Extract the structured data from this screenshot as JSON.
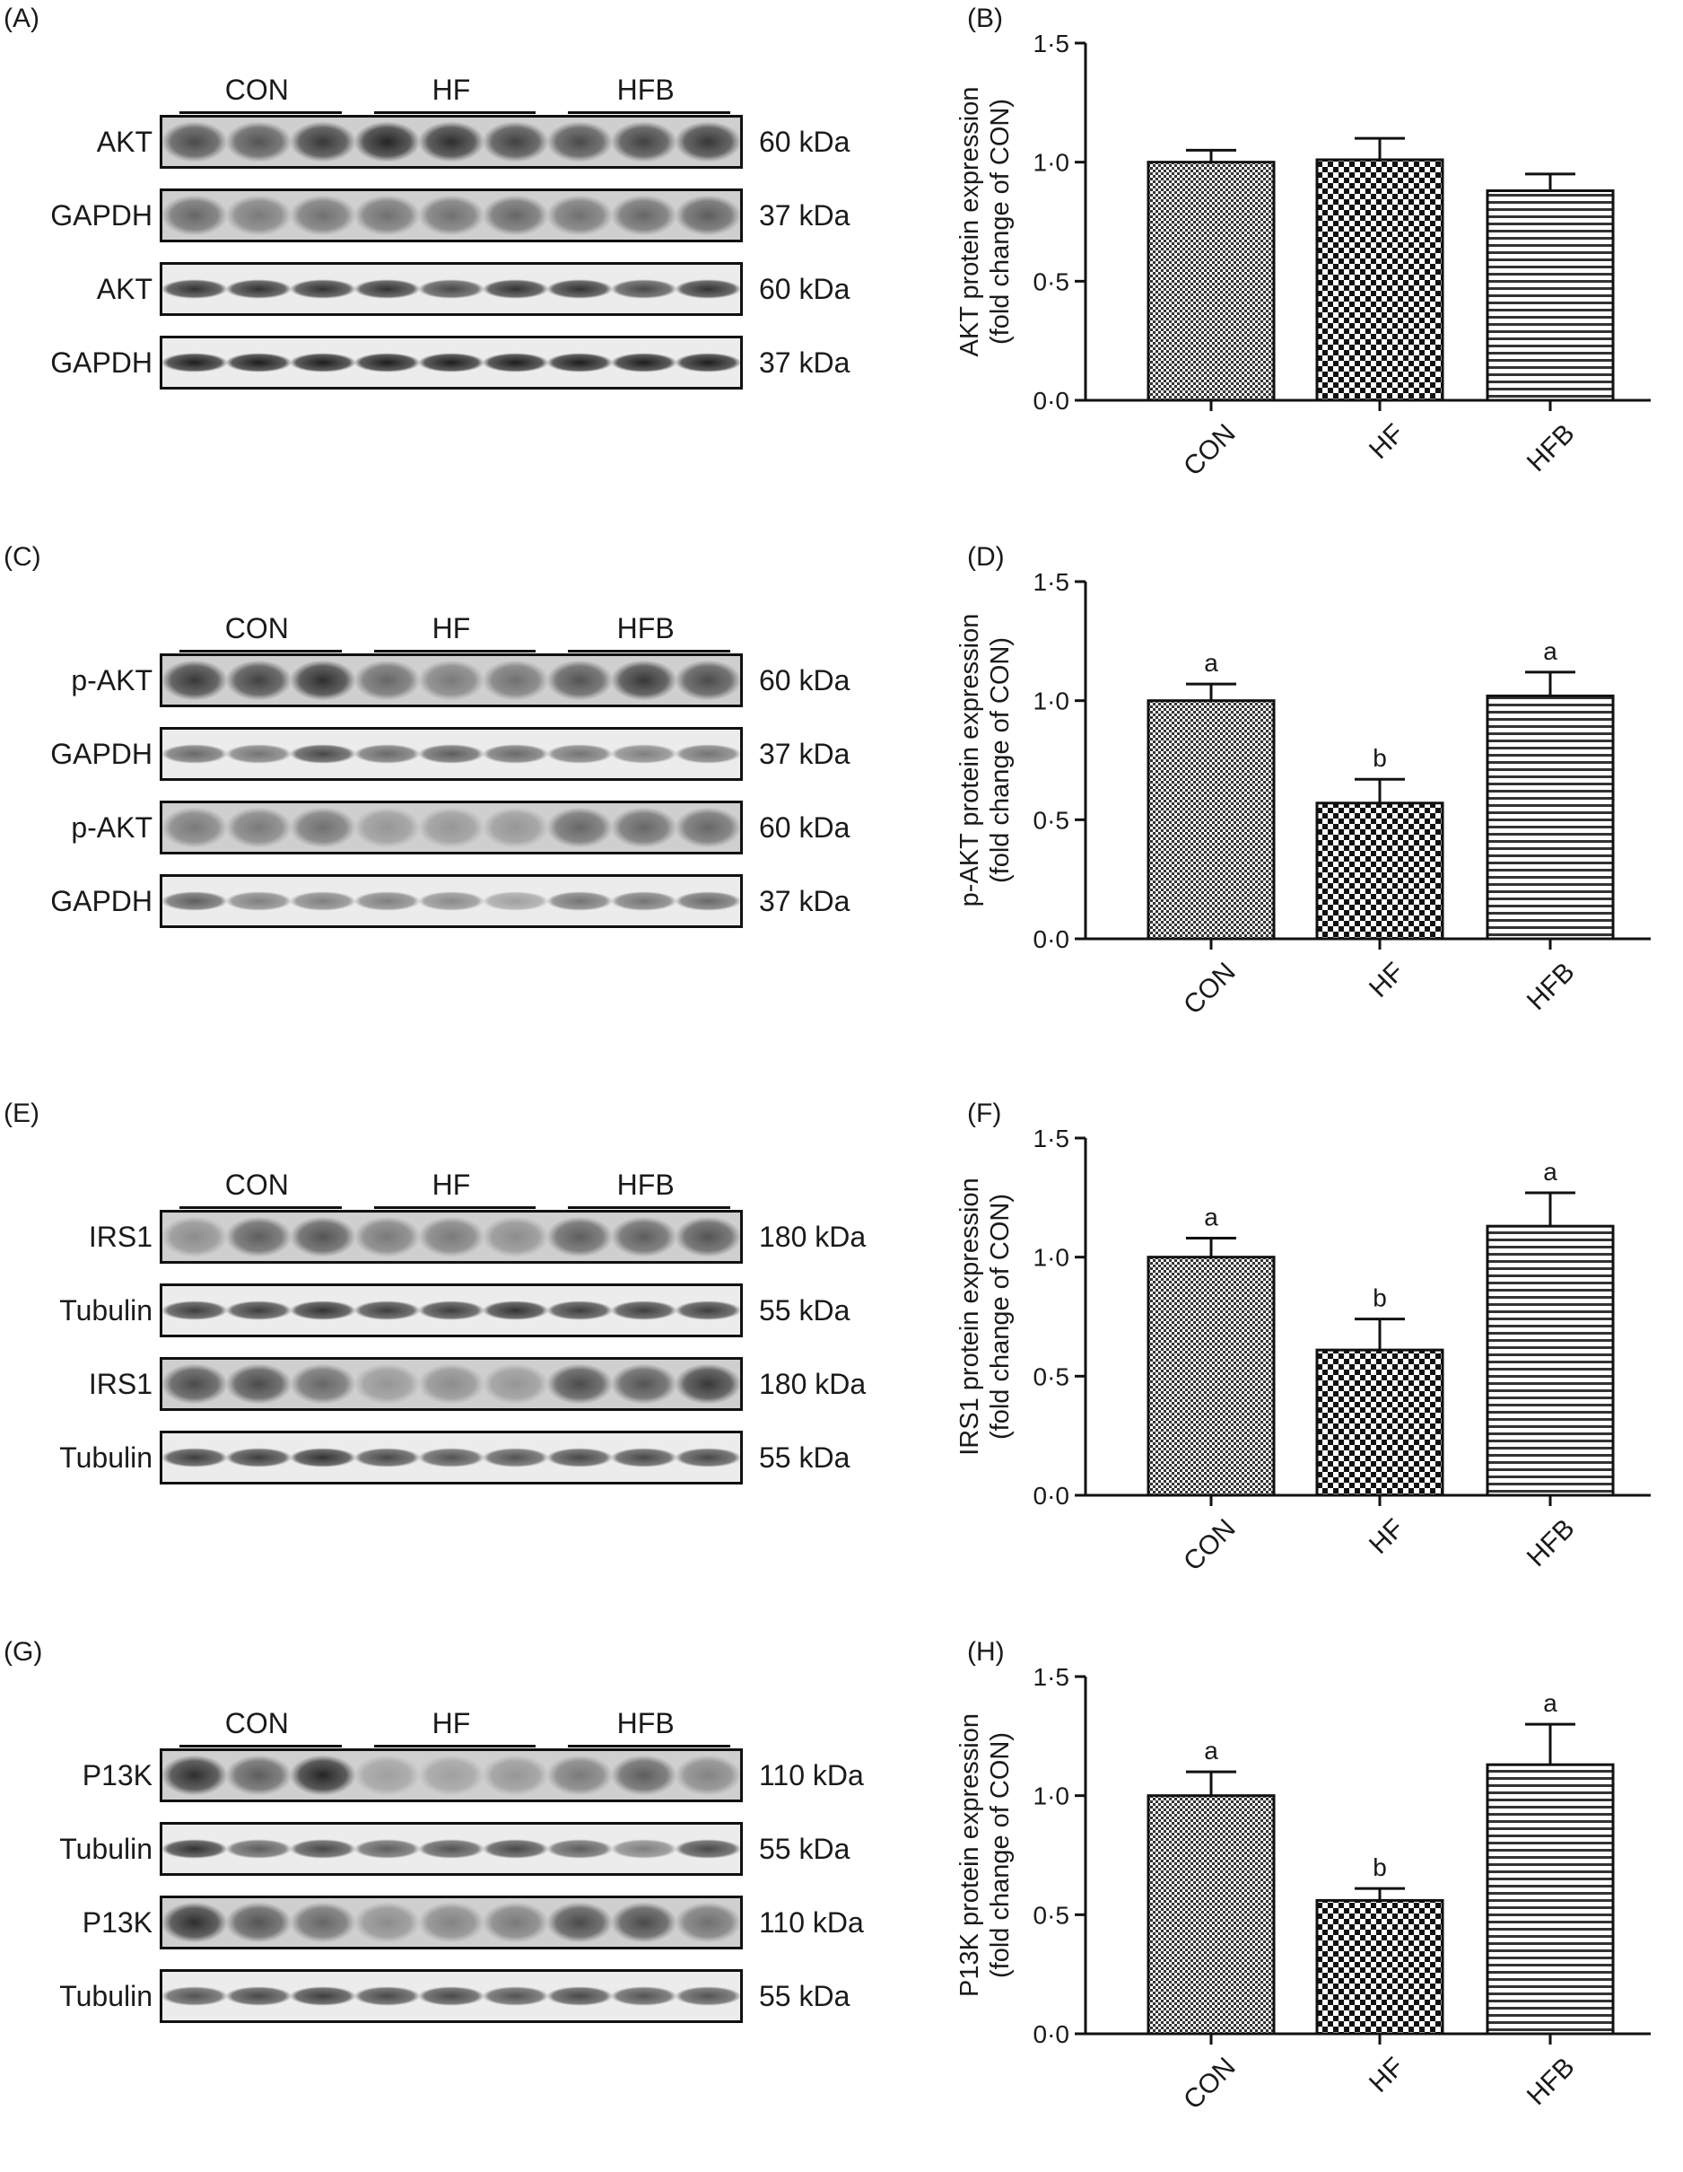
{
  "rows": [
    {
      "blot": {
        "panel": "(A)",
        "groups": [
          "CON",
          "HF",
          "HFB"
        ],
        "bands": [
          {
            "label": "AKT",
            "kda": "60 kDa",
            "style": "diffuse",
            "intensities": [
              0.7,
              0.65,
              0.8,
              0.9,
              0.85,
              0.75,
              0.7,
              0.75,
              0.8
            ]
          },
          {
            "label": "GAPDH",
            "kda": "37 kDa",
            "style": "diffuse",
            "intensities": [
              0.55,
              0.45,
              0.5,
              0.5,
              0.5,
              0.55,
              0.5,
              0.55,
              0.6
            ]
          },
          {
            "label": "AKT",
            "kda": "60 kDa",
            "style": "sharp",
            "intensities": [
              0.85,
              0.85,
              0.85,
              0.85,
              0.75,
              0.85,
              0.85,
              0.75,
              0.85
            ]
          },
          {
            "label": "GAPDH",
            "kda": "37 kDa",
            "style": "sharp",
            "intensities": [
              0.95,
              0.95,
              0.95,
              0.95,
              0.95,
              0.95,
              0.95,
              0.95,
              0.95
            ]
          }
        ]
      },
      "chart_data": {
        "panel": "(B)",
        "type": "bar",
        "categories": [
          "CON",
          "HF",
          "HFB"
        ],
        "values": [
          1.0,
          1.01,
          0.88
        ],
        "errors": [
          0.05,
          0.09,
          0.07
        ],
        "letters": [
          "",
          "",
          ""
        ],
        "patterns": [
          "check",
          "check-coarse",
          "hstripe"
        ],
        "ylabel_line1": "AKT protein expression",
        "ylabel_line2": "(fold change of CON)",
        "ylim": [
          0,
          1.5
        ],
        "yticks": [
          "0·0",
          "0·5",
          "1·0",
          "1·5"
        ]
      }
    },
    {
      "blot": {
        "panel": "(C)",
        "groups": [
          "CON",
          "HF",
          "HFB"
        ],
        "bands": [
          {
            "label": "p-AKT",
            "kda": "60 kDa",
            "style": "diffuse",
            "intensities": [
              0.8,
              0.75,
              0.85,
              0.55,
              0.45,
              0.5,
              0.65,
              0.8,
              0.7
            ]
          },
          {
            "label": "GAPDH",
            "kda": "37 kDa",
            "style": "sharp",
            "intensities": [
              0.6,
              0.55,
              0.75,
              0.6,
              0.65,
              0.6,
              0.55,
              0.5,
              0.55
            ]
          },
          {
            "label": "p-AKT",
            "kda": "60 kDa",
            "style": "diffuse",
            "intensities": [
              0.45,
              0.45,
              0.5,
              0.3,
              0.3,
              0.3,
              0.55,
              0.55,
              0.55
            ]
          },
          {
            "label": "GAPDH",
            "kda": "37 kDa",
            "style": "sharp",
            "intensities": [
              0.65,
              0.5,
              0.5,
              0.5,
              0.45,
              0.35,
              0.55,
              0.55,
              0.6
            ]
          }
        ]
      },
      "chart_data": {
        "panel": "(D)",
        "type": "bar",
        "categories": [
          "CON",
          "HF",
          "HFB"
        ],
        "values": [
          1.0,
          0.57,
          1.02
        ],
        "errors": [
          0.07,
          0.1,
          0.1
        ],
        "letters": [
          "a",
          "b",
          "a"
        ],
        "patterns": [
          "check",
          "check-coarse",
          "hstripe"
        ],
        "ylabel_line1": "p-AKT protein expression",
        "ylabel_line2": "(fold change of CON)",
        "ylim": [
          0,
          1.5
        ],
        "yticks": [
          "0·0",
          "0·5",
          "1·0",
          "1·5"
        ]
      }
    },
    {
      "blot": {
        "panel": "(E)",
        "groups": [
          "CON",
          "HF",
          "HFB"
        ],
        "bands": [
          {
            "label": "IRS1",
            "kda": "180 kDa",
            "style": "diffuse",
            "intensities": [
              0.35,
              0.6,
              0.65,
              0.45,
              0.45,
              0.35,
              0.6,
              0.6,
              0.65
            ]
          },
          {
            "label": "Tubulin",
            "kda": "55 kDa",
            "style": "sharp",
            "intensities": [
              0.8,
              0.8,
              0.85,
              0.8,
              0.8,
              0.85,
              0.8,
              0.8,
              0.8
            ]
          },
          {
            "label": "IRS1",
            "kda": "180 kDa",
            "style": "diffuse",
            "intensities": [
              0.7,
              0.7,
              0.55,
              0.3,
              0.35,
              0.3,
              0.7,
              0.65,
              0.8
            ]
          },
          {
            "label": "Tubulin",
            "kda": "55 kDa",
            "style": "sharp",
            "intensities": [
              0.8,
              0.8,
              0.85,
              0.75,
              0.7,
              0.7,
              0.75,
              0.75,
              0.75
            ]
          }
        ]
      },
      "chart_data": {
        "panel": "(F)",
        "type": "bar",
        "categories": [
          "CON",
          "HF",
          "HFB"
        ],
        "values": [
          1.0,
          0.61,
          1.13
        ],
        "errors": [
          0.08,
          0.13,
          0.14
        ],
        "letters": [
          "a",
          "b",
          "a"
        ],
        "patterns": [
          "check",
          "check-coarse",
          "hstripe"
        ],
        "ylabel_line1": "IRS1 protein expression",
        "ylabel_line2": "(fold change of CON)",
        "ylim": [
          0,
          1.5
        ],
        "yticks": [
          "0·0",
          "0·5",
          "1·0",
          "1·5"
        ]
      }
    },
    {
      "blot": {
        "panel": "(G)",
        "groups": [
          "CON",
          "HF",
          "HFB"
        ],
        "bands": [
          {
            "label": "P13K",
            "kda": "110 kDa",
            "style": "diffuse",
            "intensities": [
              0.85,
              0.6,
              0.9,
              0.25,
              0.25,
              0.3,
              0.45,
              0.6,
              0.4
            ]
          },
          {
            "label": "Tubulin",
            "kda": "55 kDa",
            "style": "sharp",
            "intensities": [
              0.85,
              0.65,
              0.75,
              0.65,
              0.7,
              0.75,
              0.65,
              0.5,
              0.75
            ]
          },
          {
            "label": "P13K",
            "kda": "110 kDa",
            "style": "diffuse",
            "intensities": [
              0.85,
              0.65,
              0.55,
              0.35,
              0.4,
              0.45,
              0.7,
              0.7,
              0.5
            ]
          },
          {
            "label": "Tubulin",
            "kda": "55 kDa",
            "style": "sharp",
            "intensities": [
              0.7,
              0.75,
              0.8,
              0.75,
              0.75,
              0.7,
              0.75,
              0.7,
              0.7
            ]
          }
        ]
      },
      "chart_data": {
        "panel": "(H)",
        "type": "bar",
        "categories": [
          "CON",
          "HF",
          "HFB"
        ],
        "values": [
          1.0,
          0.56,
          1.13
        ],
        "errors": [
          0.1,
          0.05,
          0.17
        ],
        "letters": [
          "a",
          "b",
          "a"
        ],
        "patterns": [
          "check",
          "check-coarse",
          "hstripe"
        ],
        "ylabel_line1": "P13K protein expression",
        "ylabel_line2": "(fold change of CON)",
        "ylim": [
          0,
          1.5
        ],
        "yticks": [
          "0·0",
          "0·5",
          "1·0",
          "1·5"
        ]
      }
    }
  ]
}
